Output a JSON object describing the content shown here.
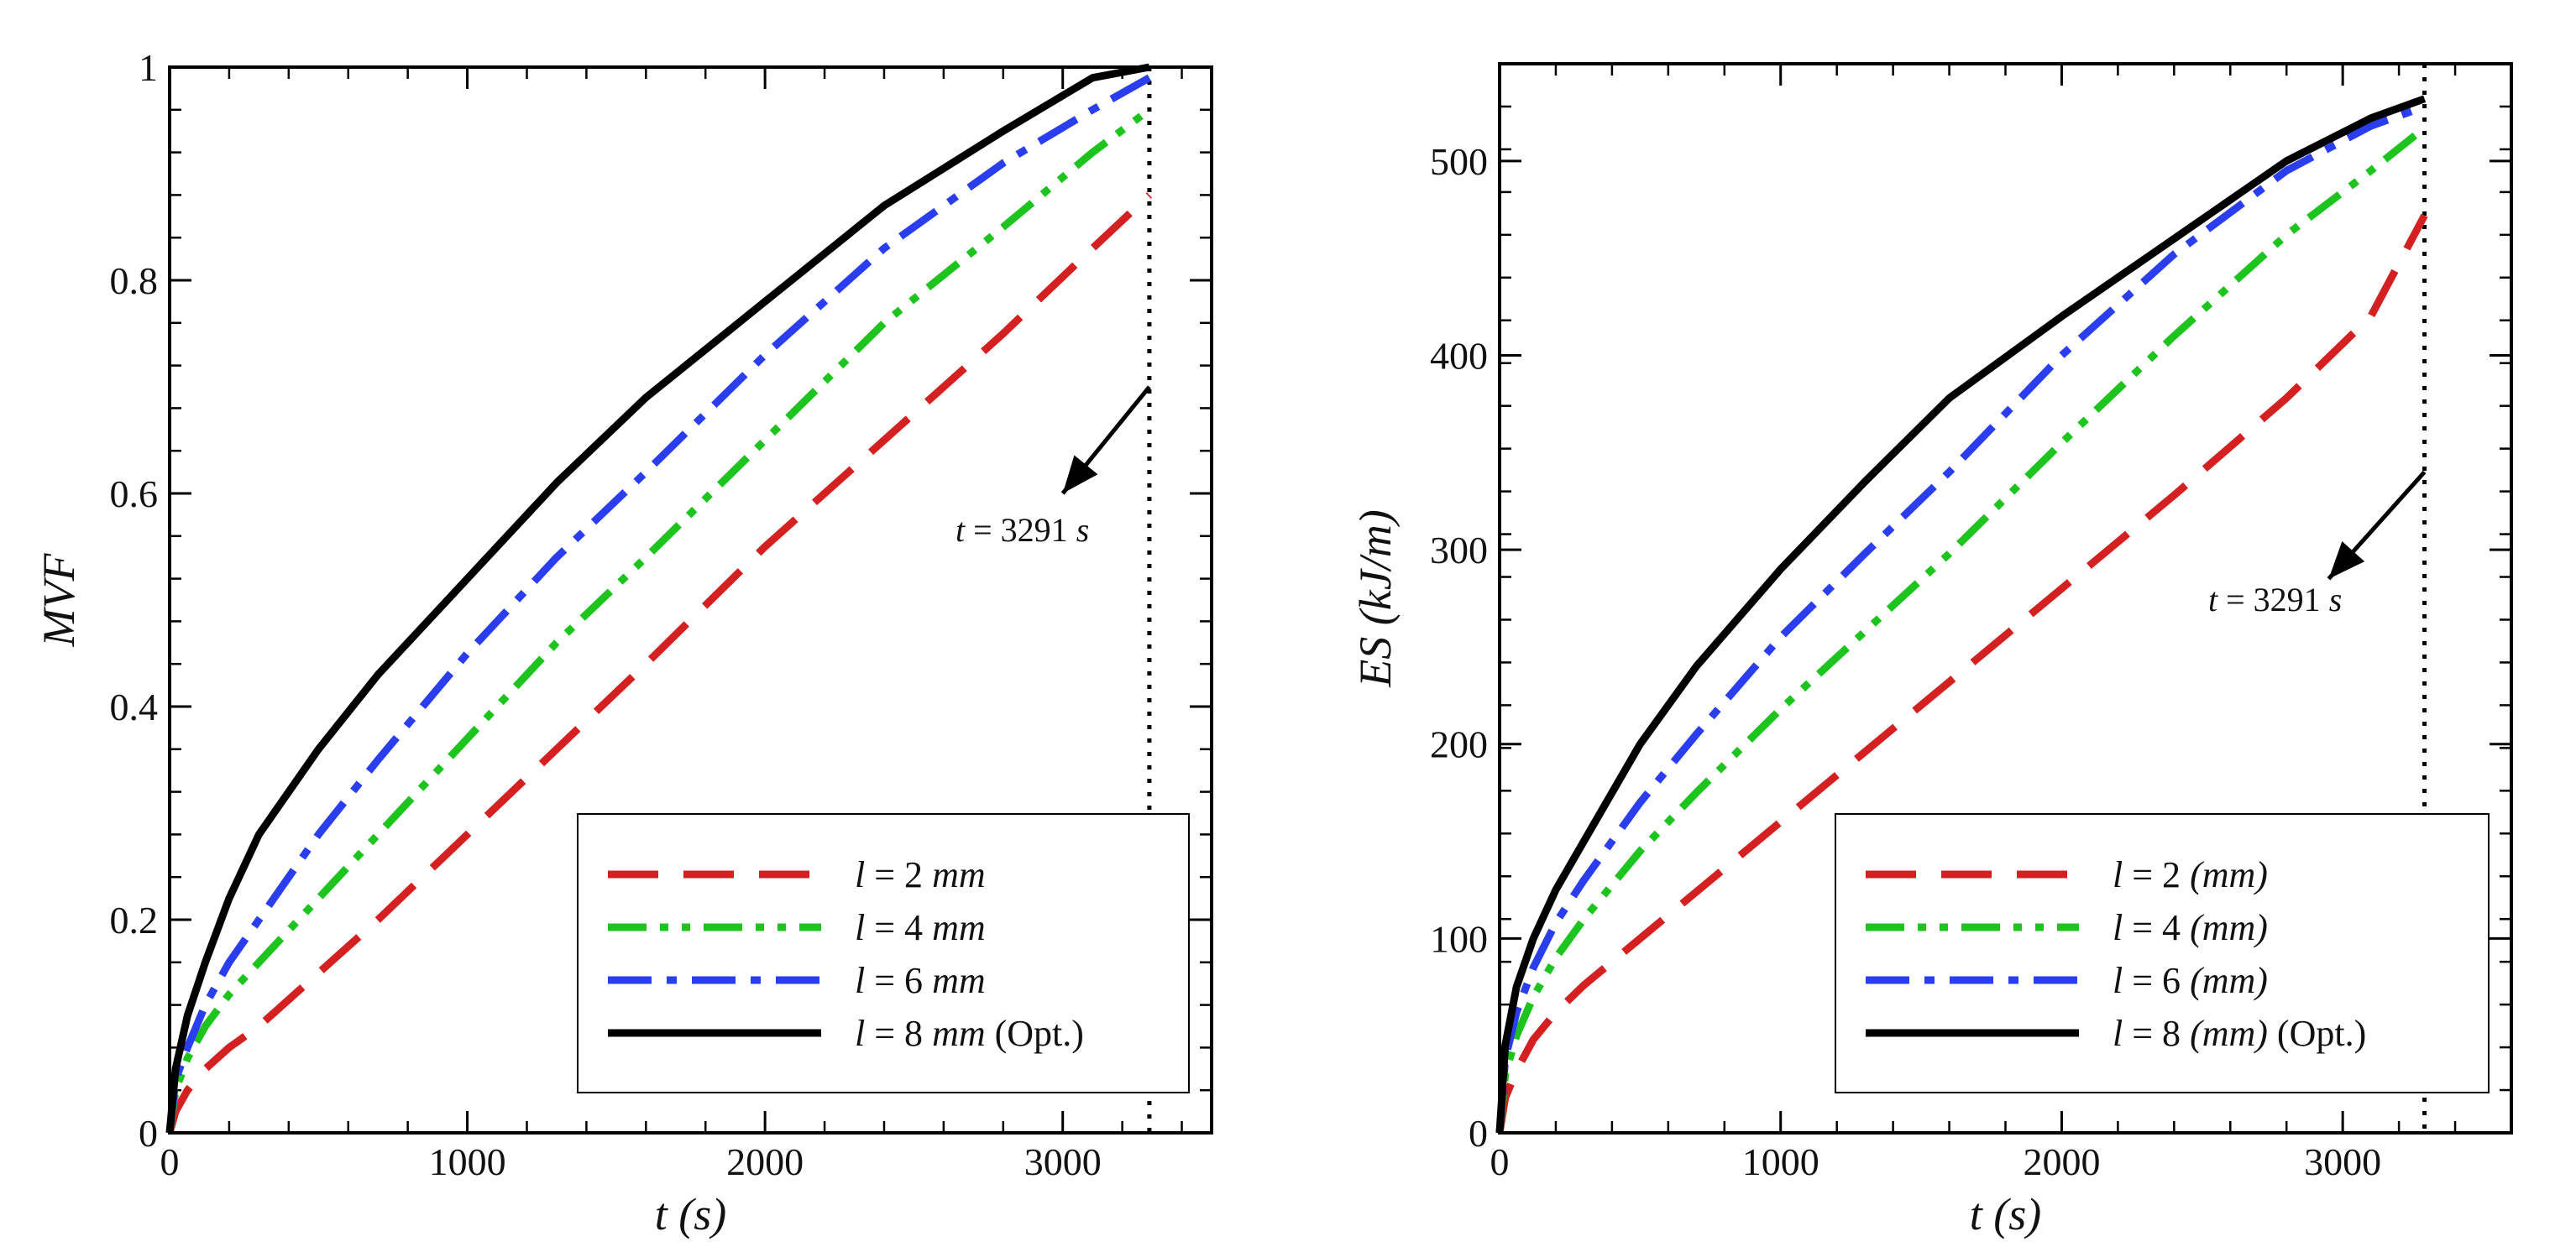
{
  "chart_data": [
    {
      "type": "line",
      "xlabel_var": "t",
      "xlabel_unit": "(s)",
      "ylabel": "MVF",
      "xlim": [
        0,
        3500
      ],
      "ylim": [
        0,
        1
      ],
      "xticks": [
        {
          "v": 0,
          "label": "0"
        },
        {
          "v": 1000,
          "label": "1000"
        },
        {
          "v": 2000,
          "label": "2000"
        },
        {
          "v": 3000,
          "label": "3000"
        }
      ],
      "yticks": [
        {
          "v": 0,
          "label": "0"
        },
        {
          "v": 0.2,
          "label": "0.2"
        },
        {
          "v": 0.4,
          "label": "0.4"
        },
        {
          "v": 0.6,
          "label": "0.6"
        },
        {
          "v": 0.8,
          "label": "0.8"
        },
        {
          "v": 1,
          "label": "1"
        }
      ],
      "vline": {
        "x": 3291
      },
      "annotation": {
        "var": "t",
        "eq": "= 3291",
        "unit": "s",
        "arrow_from": [
          3291,
          0.7
        ],
        "arrow_to": [
          3000,
          0.6
        ]
      },
      "legend_position": "bottom-right",
      "series": [
        {
          "name": "l = 2 mm",
          "var": "l",
          "eq": "= 2",
          "unit": "mm",
          "extra": "",
          "color": "#d42020",
          "style": "dash",
          "x": [
            0,
            20,
            60,
            120,
            200,
            300,
            500,
            700,
            1000,
            1300,
            1600,
            2000,
            2400,
            2800,
            3100,
            3291
          ],
          "y": [
            0,
            0.02,
            0.04,
            0.06,
            0.08,
            0.1,
            0.15,
            0.2,
            0.28,
            0.36,
            0.44,
            0.55,
            0.65,
            0.75,
            0.83,
            0.88
          ]
        },
        {
          "name": "l = 4 mm",
          "var": "l",
          "eq": "= 4",
          "unit": "mm",
          "extra": "",
          "color": "#1ec41e",
          "style": "dashdotdot",
          "x": [
            0,
            20,
            60,
            120,
            200,
            300,
            500,
            700,
            1000,
            1300,
            1600,
            2000,
            2400,
            2800,
            3100,
            3291
          ],
          "y": [
            0,
            0.04,
            0.07,
            0.1,
            0.13,
            0.16,
            0.22,
            0.28,
            0.37,
            0.46,
            0.54,
            0.65,
            0.76,
            0.85,
            0.92,
            0.96
          ]
        },
        {
          "name": "l = 6 mm",
          "var": "l",
          "eq": "= 6",
          "unit": "mm",
          "extra": "",
          "color": "#2a3ef0",
          "style": "dashdot",
          "x": [
            0,
            20,
            60,
            120,
            200,
            300,
            500,
            700,
            1000,
            1300,
            1600,
            2000,
            2400,
            2800,
            3100,
            3291
          ],
          "y": [
            0,
            0.05,
            0.08,
            0.12,
            0.16,
            0.2,
            0.28,
            0.35,
            0.45,
            0.54,
            0.62,
            0.73,
            0.83,
            0.91,
            0.96,
            0.99
          ]
        },
        {
          "name": "l = 8 mm (Opt.)",
          "var": "l",
          "eq": "= 8",
          "unit": "mm",
          "extra": "(Opt.)",
          "color": "#000000",
          "style": "solid",
          "x": [
            0,
            20,
            60,
            120,
            200,
            300,
            500,
            700,
            1000,
            1300,
            1600,
            2000,
            2400,
            2800,
            3100,
            3291
          ],
          "y": [
            0,
            0.06,
            0.11,
            0.16,
            0.22,
            0.28,
            0.36,
            0.43,
            0.52,
            0.61,
            0.69,
            0.78,
            0.87,
            0.94,
            0.99,
            1.0
          ]
        }
      ]
    },
    {
      "type": "line",
      "xlabel_var": "t",
      "xlabel_unit": "(s)",
      "ylabel": "ES (kJ/m)",
      "xlim": [
        0,
        3600
      ],
      "ylim": [
        0,
        550
      ],
      "xticks": [
        {
          "v": 0,
          "label": "0"
        },
        {
          "v": 1000,
          "label": "1000"
        },
        {
          "v": 2000,
          "label": "2000"
        },
        {
          "v": 3000,
          "label": "3000"
        }
      ],
      "yticks": [
        {
          "v": 0,
          "label": "0"
        },
        {
          "v": 100,
          "label": "100"
        },
        {
          "v": 200,
          "label": "200"
        },
        {
          "v": 300,
          "label": "300"
        },
        {
          "v": 400,
          "label": "400"
        },
        {
          "v": 500,
          "label": "500"
        }
      ],
      "vline": {
        "x": 3291
      },
      "annotation": {
        "var": "t",
        "eq": "= 3291",
        "unit": "s",
        "arrow_from": [
          3291,
          340
        ],
        "arrow_to": [
          2950,
          285
        ]
      },
      "legend_position": "bottom-right",
      "series": [
        {
          "name": "l = 2 (mm)",
          "var": "l",
          "eq": "= 2",
          "unit": "(mm)",
          "extra": "",
          "color": "#d42020",
          "style": "dash",
          "x": [
            0,
            20,
            60,
            120,
            200,
            300,
            500,
            700,
            1000,
            1300,
            1600,
            2000,
            2400,
            2800,
            3100,
            3291
          ],
          "y": [
            0,
            18,
            32,
            48,
            62,
            76,
            100,
            124,
            160,
            196,
            232,
            280,
            328,
            378,
            420,
            472
          ]
        },
        {
          "name": "l = 4 (mm)",
          "var": "l",
          "eq": "= 4",
          "unit": "(mm)",
          "extra": "",
          "color": "#1ec41e",
          "style": "dashdotdot",
          "x": [
            0,
            20,
            60,
            120,
            200,
            300,
            500,
            700,
            1000,
            1300,
            1600,
            2000,
            2400,
            2800,
            3100,
            3291
          ],
          "y": [
            0,
            30,
            50,
            70,
            90,
            110,
            145,
            175,
            218,
            258,
            298,
            355,
            410,
            462,
            495,
            517
          ]
        },
        {
          "name": "l = 6 (mm)",
          "var": "l",
          "eq": "= 6",
          "unit": "(mm)",
          "extra": "",
          "color": "#2a3ef0",
          "style": "dashdot",
          "x": [
            0,
            20,
            60,
            120,
            200,
            300,
            500,
            700,
            1000,
            1300,
            1600,
            2000,
            2400,
            2800,
            3100,
            3291
          ],
          "y": [
            0,
            38,
            62,
            85,
            108,
            130,
            170,
            205,
            255,
            298,
            340,
            400,
            452,
            495,
            518,
            528
          ]
        },
        {
          "name": "l = 8 (mm) (Opt.)",
          "var": "l",
          "eq": "= 8",
          "unit": "(mm)",
          "extra": "(Opt.)",
          "color": "#000000",
          "style": "solid",
          "x": [
            0,
            20,
            60,
            120,
            200,
            300,
            500,
            700,
            1000,
            1300,
            1600,
            2000,
            2400,
            2800,
            3100,
            3291
          ],
          "y": [
            0,
            45,
            75,
            100,
            125,
            150,
            200,
            240,
            290,
            335,
            378,
            420,
            460,
            500,
            522,
            532
          ]
        }
      ]
    }
  ]
}
